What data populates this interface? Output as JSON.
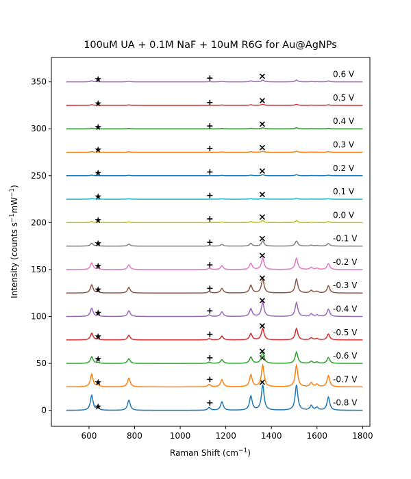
{
  "chart_data": {
    "type": "line",
    "title": "100uM UA + 0.1M NaF + 10uM R6G for Au@AgNPs",
    "xlabel": "Raman Shift (cm",
    "xlabel_sup": "−1",
    "xlabel_end": ")",
    "ylabel_parts": [
      "Intensity (counts s",
      "−1",
      "mW",
      "−1",
      ")"
    ],
    "xlim": [
      435,
      1832
    ],
    "ylim": [
      -17,
      376
    ],
    "x_ticks": [
      600,
      800,
      1000,
      1200,
      1400,
      1600,
      1800
    ],
    "y_ticks": [
      0,
      50,
      100,
      150,
      200,
      250,
      300,
      350
    ],
    "x_range": [
      500,
      1800
    ],
    "grid": false,
    "marker_positions": {
      "star": 640,
      "plus": 1130,
      "cross": 1360
    },
    "series": [
      {
        "name": "-0.8 V",
        "offset": 0,
        "scale": 1.0,
        "color": "#1f77b4"
      },
      {
        "name": "-0.7 V",
        "offset": 25,
        "scale": 0.85,
        "color": "#ff7f0e"
      },
      {
        "name": "-0.6 V",
        "offset": 50,
        "scale": 0.45,
        "color": "#2ca02c"
      },
      {
        "name": "-0.5 V",
        "offset": 75,
        "scale": 0.45,
        "color": "#d62728"
      },
      {
        "name": "-0.4 V",
        "offset": 100,
        "scale": 0.55,
        "color": "#9467bd"
      },
      {
        "name": "-0.3 V",
        "offset": 125,
        "scale": 0.55,
        "color": "#8c564b"
      },
      {
        "name": "-0.2 V",
        "offset": 150,
        "scale": 0.45,
        "color": "#e377c2"
      },
      {
        "name": "-0.1 V",
        "offset": 175,
        "scale": 0.2,
        "color": "#7f7f7f"
      },
      {
        "name": "0.0 V",
        "offset": 200,
        "scale": 0.08,
        "color": "#bcbd22"
      },
      {
        "name": "0.1 V",
        "offset": 225,
        "scale": 0.04,
        "color": "#17becf"
      },
      {
        "name": "0.2 V",
        "offset": 250,
        "scale": 0.04,
        "color": "#1f77b4"
      },
      {
        "name": "0.3 V",
        "offset": 275,
        "scale": 0.04,
        "color": "#ff7f0e"
      },
      {
        "name": "0.4 V",
        "offset": 300,
        "scale": 0.04,
        "color": "#2ca02c"
      },
      {
        "name": "0.5 V",
        "offset": 325,
        "scale": 0.04,
        "color": "#d62728"
      },
      {
        "name": "0.6 V",
        "offset": 350,
        "scale": 0.07,
        "color": "#9467bd"
      }
    ],
    "peaks": [
      {
        "x": 612,
        "h": 16
      },
      {
        "x": 640,
        "h": 2
      },
      {
        "x": 775,
        "h": 11
      },
      {
        "x": 1127,
        "h": 3
      },
      {
        "x": 1183,
        "h": 9
      },
      {
        "x": 1310,
        "h": 15
      },
      {
        "x": 1362,
        "h": 27
      },
      {
        "x": 1510,
        "h": 27
      },
      {
        "x": 1575,
        "h": 5
      },
      {
        "x": 1600,
        "h": 3
      },
      {
        "x": 1650,
        "h": 14
      }
    ],
    "marker_y": {
      "star": [
        4,
        30,
        55,
        79,
        104,
        129,
        154,
        178,
        203,
        228,
        253,
        278,
        302,
        327,
        353
      ],
      "plus": [
        8,
        33,
        56,
        81,
        106,
        130,
        155,
        179,
        204,
        229,
        254,
        279,
        303,
        328,
        354
      ],
      "cross": [
        30,
        56,
        63,
        90,
        117,
        141,
        165,
        183,
        206,
        230,
        255,
        280,
        305,
        330,
        356
      ]
    }
  }
}
